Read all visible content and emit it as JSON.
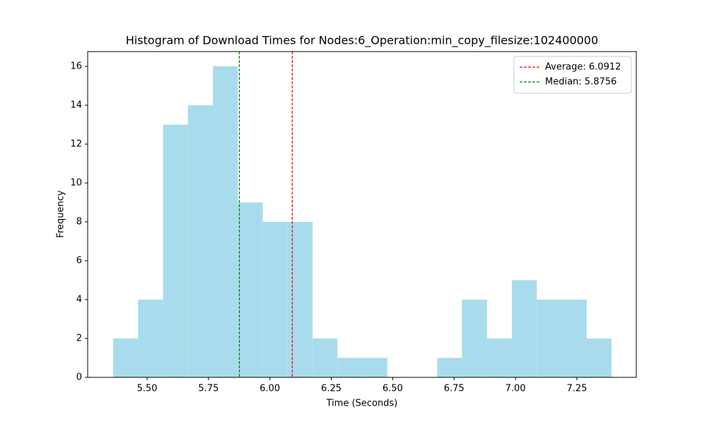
{
  "chart_data": {
    "type": "histogram",
    "title": "Histogram of Download Times for Nodes:6_Operation:min_copy_filesize:102400000",
    "x_label": "Time (Seconds)",
    "y_label": "Frequency",
    "bins": [
      5.362,
      5.463,
      5.565,
      5.666,
      5.768,
      5.869,
      5.971,
      6.072,
      6.174,
      6.275,
      6.377,
      6.478,
      6.579,
      6.681,
      6.782,
      6.884,
      6.985,
      7.087,
      7.188,
      7.29,
      7.391
    ],
    "counts": [
      2,
      4,
      13,
      14,
      16,
      9,
      8,
      8,
      2,
      1,
      1,
      0,
      0,
      1,
      4,
      2,
      5,
      4,
      4,
      2
    ],
    "color": "#a8dcec",
    "reference_lines": [
      {
        "name": "Average: 6.0912",
        "value": 6.0912,
        "color": "#ff0000"
      },
      {
        "name": "Median: 5.8756",
        "value": 5.8756,
        "color": "#008000"
      }
    ],
    "xlim": [
      5.258,
      7.492
    ],
    "xticks": [
      {
        "value": 5.5,
        "label": "5.50"
      },
      {
        "value": 5.75,
        "label": "5.75"
      },
      {
        "value": 6,
        "label": "6.00"
      },
      {
        "value": 6.25,
        "label": "6.25"
      },
      {
        "value": 6.5,
        "label": "6.50"
      },
      {
        "value": 6.75,
        "label": "6.75"
      },
      {
        "value": 7,
        "label": "7.00"
      },
      {
        "value": 7.25,
        "label": "7.25"
      }
    ],
    "ylim": [
      0,
      16.76
    ],
    "yticks": [
      0,
      2,
      4,
      6,
      8,
      10,
      12,
      14,
      16
    ],
    "legend": "upper right"
  }
}
